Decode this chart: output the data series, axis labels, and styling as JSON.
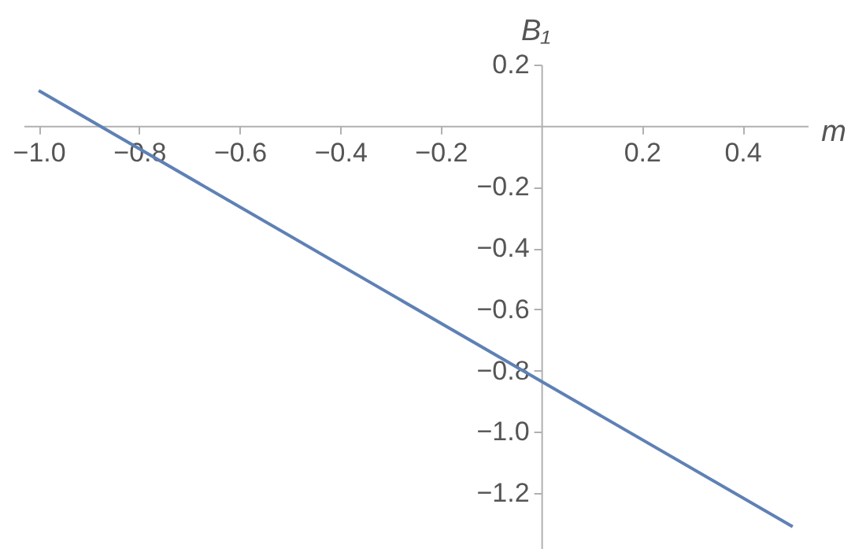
{
  "chart_data": {
    "type": "line",
    "xlabel": "m",
    "ylabel": "B₁",
    "x": [
      -1.0,
      0.5
    ],
    "series": [
      {
        "color": "#5e81b5",
        "values": [
          0.115,
          -1.31
        ]
      }
    ],
    "xlim": [
      -1.03,
      0.53
    ],
    "ylim": [
      -1.38,
      0.2
    ],
    "xticks": [
      {
        "value": -1.0,
        "label": "−1.0"
      },
      {
        "value": -0.8,
        "label": "−0.8"
      },
      {
        "value": -0.6,
        "label": "−0.6"
      },
      {
        "value": -0.4,
        "label": "−0.4"
      },
      {
        "value": -0.2,
        "label": "−0.2"
      },
      0.2,
      0.4
    ],
    "yticks": [
      0.2,
      {
        "value": -0.2,
        "label": "−0.2"
      },
      {
        "value": -0.4,
        "label": "−0.4"
      },
      {
        "value": -0.6,
        "label": "−0.6"
      },
      {
        "value": -0.8,
        "label": "−0.8"
      },
      {
        "value": -1.0,
        "label": "−1.0"
      },
      {
        "value": -1.2,
        "label": "−1.2"
      }
    ],
    "grid": false,
    "marker": "none",
    "line_style": "solid"
  }
}
